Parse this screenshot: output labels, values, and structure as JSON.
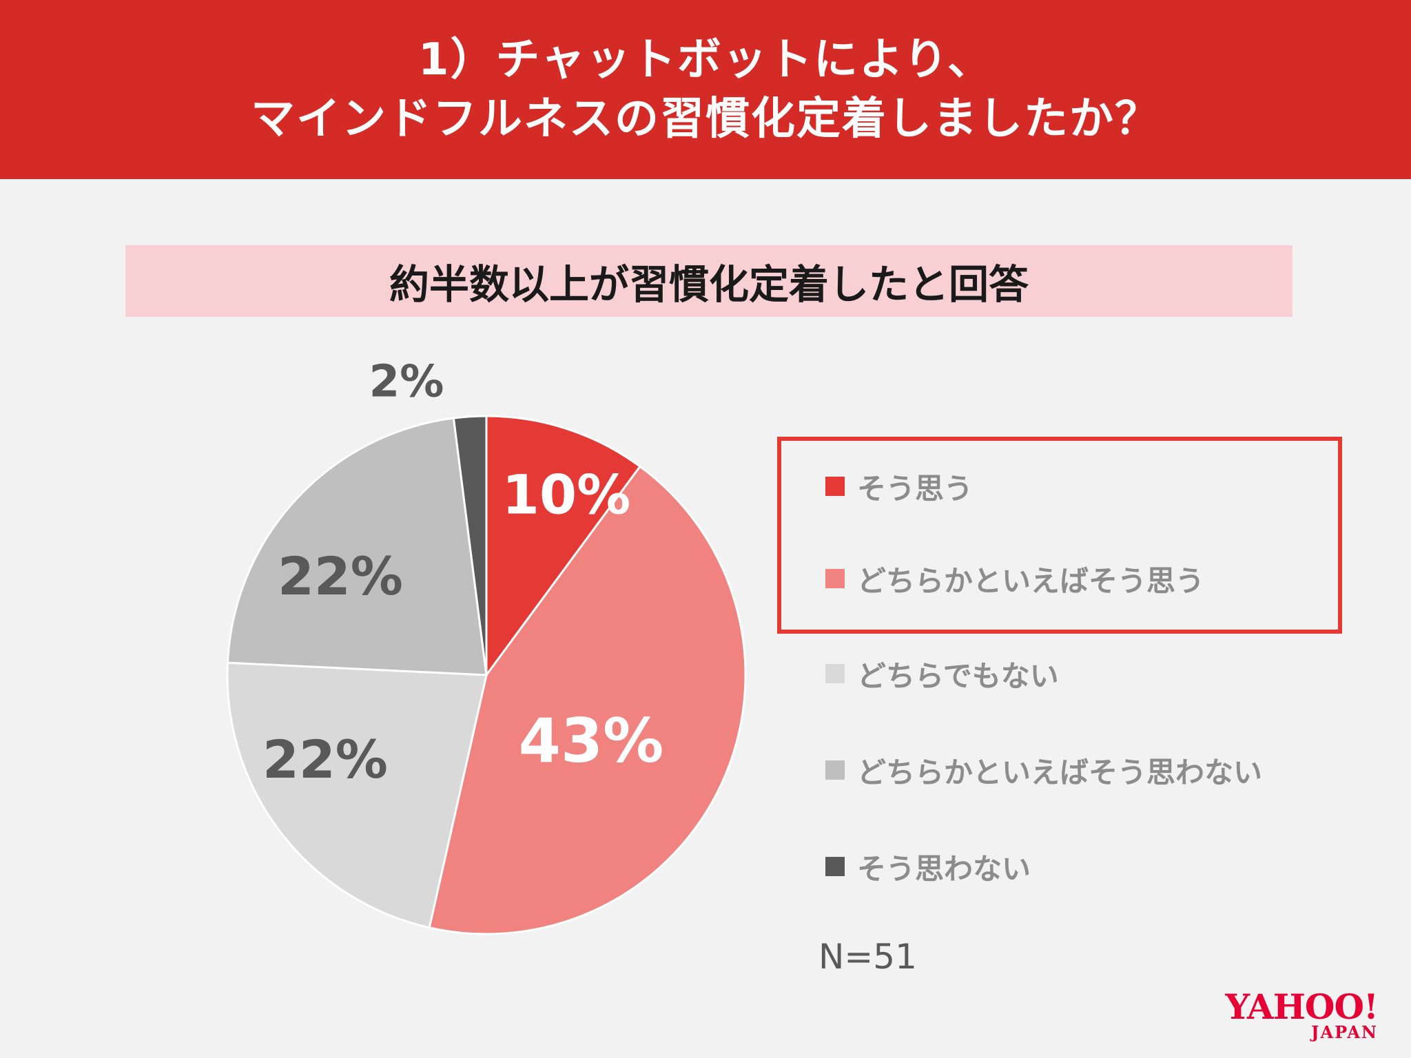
{
  "header": {
    "line1": "1）チャットボットにより、",
    "line2": "マインドフルネスの習慣化定着しましたか？"
  },
  "subtitle": "約半数以上が習慣化定着したと回答",
  "colors": {
    "header_bg": "#d42b27",
    "subtitle_bg": "#f8d0d3",
    "highlight_border": "#e53935",
    "logo": "#e60033"
  },
  "chart_data": {
    "type": "pie",
    "categories": [
      "そう思う",
      "どちらかといえばそう思う",
      "どちらでもない",
      "どちらかといえばそう思わない",
      "そう思わない"
    ],
    "values": [
      10,
      43,
      22,
      22,
      2
    ],
    "labels": [
      "10%",
      "43%",
      "22%",
      "22%",
      "2%"
    ],
    "colors": [
      "#e53935",
      "#f08380",
      "#d9d9d9",
      "#bfbfbf",
      "#595959"
    ],
    "label_colors": [
      "#ffffff",
      "#ffffff",
      "#595959",
      "#595959",
      "#595959"
    ],
    "start": "12 o'clock",
    "direction": "clockwise",
    "legend_position": "right",
    "highlighted_legend": [
      "そう思う",
      "どちらかといえばそう思う"
    ]
  },
  "note": "N=51",
  "logo": {
    "brand": "YAHOO!",
    "sub": "JAPAN"
  }
}
